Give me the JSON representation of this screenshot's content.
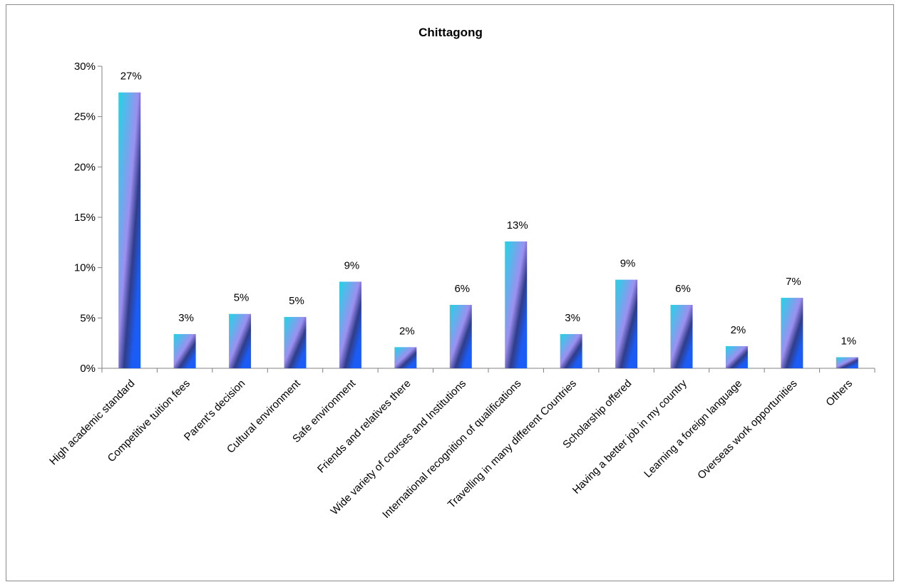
{
  "chart_data": {
    "type": "bar",
    "title": "Chittagong",
    "xlabel": "",
    "ylabel": "",
    "categories": [
      "High academic standard",
      "Competitive tuition fees",
      "Parent's decision",
      "Cultural environment",
      "Safe environment",
      "Friends and relatives there",
      "Wide variety of courses and Institutions",
      "International recognition of qualifications",
      "Travelling in many different Countries",
      "Scholarship offered",
      "Having a better job in my country",
      "Learning a foreign language",
      "Overseas work opportunities",
      "Others"
    ],
    "values": [
      27.4,
      3.4,
      5.4,
      5.1,
      8.6,
      2.1,
      6.3,
      12.6,
      3.4,
      8.8,
      6.3,
      2.2,
      7.0,
      1.1
    ],
    "data_labels": [
      "27%",
      "3%",
      "5%",
      "5%",
      "9%",
      "2%",
      "6%",
      "13%",
      "3%",
      "9%",
      "6%",
      "2%",
      "7%",
      "1%"
    ],
    "yticks": [
      "0%",
      "5%",
      "10%",
      "15%",
      "20%",
      "25%",
      "30%"
    ],
    "ylim": [
      0,
      30
    ],
    "grid": false,
    "legend": "none",
    "colors": {
      "bar_light": "#22d4e6",
      "bar_mid": "#9d8ff0",
      "bar_dark": "#2f3d8a",
      "bar_blue": "#1a5cf5",
      "axis": "#808080"
    }
  }
}
